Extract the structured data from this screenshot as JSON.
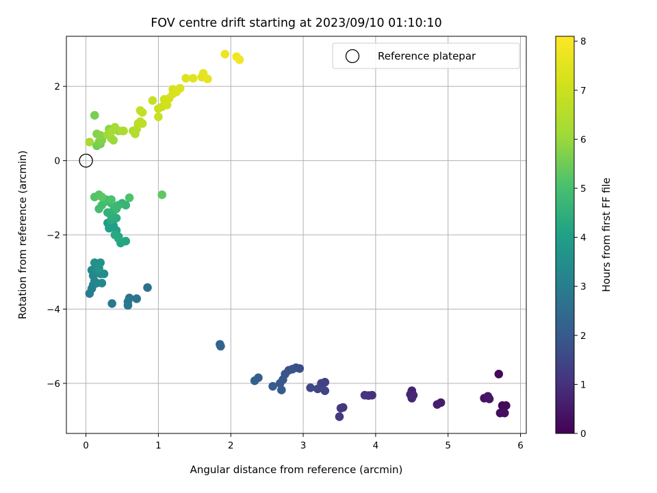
{
  "chart_data": {
    "type": "scatter",
    "title": "FOV centre drift starting at 2023/09/10 01:10:10",
    "xlabel": "Angular distance from reference (arcmin)",
    "ylabel": "Rotation from reference (arcmin)",
    "xlim": [
      -0.27,
      6.08
    ],
    "ylim": [
      -7.35,
      3.35
    ],
    "x_ticks": [
      0,
      1,
      2,
      3,
      4,
      5,
      6
    ],
    "y_ticks": [
      -6,
      -4,
      -2,
      0,
      2
    ],
    "grid": true,
    "legend": {
      "placement": "top-right",
      "entries": [
        "Reference platepar"
      ]
    },
    "reference_point": {
      "x": 0,
      "y": 0
    },
    "colorbar": {
      "label": "Hours from first FF file",
      "range": [
        0,
        8.1
      ],
      "ticks": [
        0,
        1,
        2,
        3,
        4,
        5,
        6,
        7,
        8
      ],
      "colormap": "viridis"
    },
    "points": [
      [
        5.7,
        -5.75,
        0.1
      ],
      [
        5.75,
        -6.6,
        0.15
      ],
      [
        5.8,
        -6.6,
        0.2
      ],
      [
        5.72,
        -6.8,
        0.25
      ],
      [
        5.78,
        -6.8,
        0.3
      ],
      [
        5.5,
        -6.4,
        0.35
      ],
      [
        5.55,
        -6.35,
        0.4
      ],
      [
        5.57,
        -6.42,
        0.45
      ],
      [
        4.9,
        -6.52,
        0.55
      ],
      [
        4.85,
        -6.57,
        0.6
      ],
      [
        4.5,
        -6.2,
        0.7
      ],
      [
        4.48,
        -6.3,
        0.75
      ],
      [
        4.5,
        -6.4,
        0.8
      ],
      [
        4.52,
        -6.32,
        0.85
      ],
      [
        3.95,
        -6.32,
        0.95
      ],
      [
        3.9,
        -6.33,
        1.0
      ],
      [
        3.85,
        -6.32,
        1.05
      ],
      [
        3.55,
        -6.65,
        1.1
      ],
      [
        3.52,
        -6.67,
        1.15
      ],
      [
        3.5,
        -6.9,
        1.2
      ],
      [
        3.3,
        -5.97,
        1.35
      ],
      [
        3.25,
        -6.0,
        1.4
      ],
      [
        3.3,
        -6.2,
        1.45
      ],
      [
        3.2,
        -6.15,
        1.5
      ],
      [
        3.1,
        -6.12,
        1.55
      ],
      [
        2.95,
        -5.6,
        1.65
      ],
      [
        2.9,
        -5.58,
        1.7
      ],
      [
        2.85,
        -5.62,
        1.75
      ],
      [
        2.8,
        -5.65,
        1.8
      ],
      [
        2.75,
        -5.75,
        1.85
      ],
      [
        2.72,
        -5.9,
        1.9
      ],
      [
        2.68,
        -6.0,
        1.95
      ],
      [
        2.7,
        -6.18,
        2.0
      ],
      [
        2.58,
        -6.08,
        2.05
      ],
      [
        2.38,
        -5.85,
        2.1
      ],
      [
        2.33,
        -5.93,
        2.15
      ],
      [
        1.85,
        -4.95,
        2.2
      ],
      [
        1.86,
        -5.0,
        2.25
      ],
      [
        0.85,
        -3.42,
        2.6
      ],
      [
        0.7,
        -3.72,
        2.7
      ],
      [
        0.6,
        -3.7,
        2.75
      ],
      [
        0.58,
        -3.8,
        2.8
      ],
      [
        0.58,
        -3.9,
        2.85
      ],
      [
        0.36,
        -3.85,
        2.9
      ],
      [
        0.05,
        -3.58,
        3.0
      ],
      [
        0.08,
        -3.45,
        3.05
      ],
      [
        0.1,
        -3.35,
        3.1
      ],
      [
        0.12,
        -3.25,
        3.15
      ],
      [
        0.15,
        -3.3,
        3.2
      ],
      [
        0.1,
        -3.1,
        3.25
      ],
      [
        0.08,
        -2.95,
        3.3
      ],
      [
        0.22,
        -3.3,
        3.35
      ],
      [
        0.2,
        -3.05,
        3.4
      ],
      [
        0.25,
        -3.05,
        3.45
      ],
      [
        0.15,
        -2.95,
        3.5
      ],
      [
        0.12,
        -2.75,
        3.55
      ],
      [
        0.2,
        -2.75,
        3.6
      ],
      [
        0.18,
        -2.9,
        3.65
      ],
      [
        0.3,
        -1.68,
        3.9
      ],
      [
        0.32,
        -1.82,
        3.95
      ],
      [
        0.38,
        -1.75,
        4.0
      ],
      [
        0.42,
        -1.88,
        4.05
      ],
      [
        0.45,
        -2.05,
        4.1
      ],
      [
        0.48,
        -2.22,
        4.15
      ],
      [
        0.55,
        -2.17,
        4.2
      ],
      [
        0.45,
        -2.1,
        4.25
      ],
      [
        0.4,
        -2.0,
        4.3
      ],
      [
        0.35,
        -1.6,
        4.35
      ],
      [
        0.42,
        -1.55,
        4.4
      ],
      [
        0.35,
        -1.48,
        4.45
      ],
      [
        0.3,
        -1.4,
        4.5
      ],
      [
        0.38,
        -1.35,
        4.55
      ],
      [
        0.5,
        -1.15,
        4.6
      ],
      [
        0.55,
        -1.2,
        4.65
      ],
      [
        0.45,
        -1.2,
        4.7
      ],
      [
        0.42,
        -1.3,
        4.75
      ],
      [
        0.35,
        -1.15,
        4.8
      ],
      [
        0.28,
        -1.1,
        4.85
      ],
      [
        0.22,
        -1.2,
        4.9
      ],
      [
        0.18,
        -1.3,
        4.95
      ],
      [
        0.28,
        -1.05,
        5.0
      ],
      [
        0.35,
        -1.05,
        5.05
      ],
      [
        0.6,
        -1.0,
        5.1
      ],
      [
        0.12,
        -0.98,
        5.15
      ],
      [
        0.18,
        -0.92,
        5.2
      ],
      [
        0.22,
        -0.98,
        5.25
      ],
      [
        1.05,
        -0.92,
        5.3
      ],
      [
        0.15,
        0.4,
        5.5
      ],
      [
        0.2,
        0.45,
        5.55
      ],
      [
        0.12,
        1.22,
        5.6
      ],
      [
        0.18,
        0.5,
        5.65
      ],
      [
        0.22,
        0.55,
        5.7
      ],
      [
        0.15,
        0.72,
        5.75
      ],
      [
        0.2,
        0.68,
        5.8
      ],
      [
        0.32,
        0.85,
        5.85
      ],
      [
        0.38,
        0.85,
        5.9
      ],
      [
        0.45,
        0.8,
        5.95
      ],
      [
        0.38,
        0.55,
        6.0
      ],
      [
        0.35,
        0.6,
        6.05
      ],
      [
        0.3,
        0.7,
        6.1
      ],
      [
        0.35,
        0.78,
        6.15
      ],
      [
        0.4,
        0.9,
        6.2
      ],
      [
        0.05,
        0.5,
        6.25
      ],
      [
        0.5,
        0.8,
        6.3
      ],
      [
        0.52,
        0.8,
        6.35
      ],
      [
        0.65,
        0.8,
        6.4
      ],
      [
        0.68,
        0.72,
        6.45
      ],
      [
        0.7,
        0.85,
        6.5
      ],
      [
        0.72,
        1.0,
        6.6
      ],
      [
        0.75,
        1.05,
        6.65
      ],
      [
        0.78,
        1.0,
        6.7
      ],
      [
        0.75,
        1.35,
        6.75
      ],
      [
        0.78,
        1.3,
        6.8
      ],
      [
        0.92,
        1.62,
        6.85
      ],
      [
        1.0,
        1.18,
        6.9
      ],
      [
        1.0,
        1.4,
        6.95
      ],
      [
        1.05,
        1.45,
        7.0
      ],
      [
        1.08,
        1.65,
        7.05
      ],
      [
        1.12,
        1.5,
        7.1
      ],
      [
        1.15,
        1.68,
        7.15
      ],
      [
        1.2,
        1.8,
        7.2
      ],
      [
        1.2,
        1.92,
        7.25
      ],
      [
        1.3,
        1.95,
        7.3
      ],
      [
        1.25,
        1.85,
        7.35
      ],
      [
        1.38,
        2.22,
        7.4
      ],
      [
        1.48,
        2.22,
        7.45
      ],
      [
        1.6,
        2.25,
        7.5
      ],
      [
        1.62,
        2.35,
        7.55
      ],
      [
        1.68,
        2.2,
        7.6
      ],
      [
        1.92,
        2.87,
        7.75
      ],
      [
        2.08,
        2.8,
        7.8
      ],
      [
        2.12,
        2.72,
        7.85
      ]
    ]
  }
}
